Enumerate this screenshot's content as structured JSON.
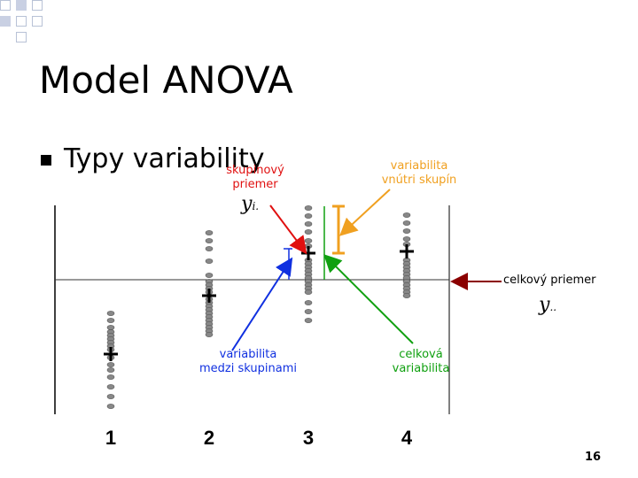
{
  "slide": {
    "title": "Model ANOVA",
    "bullet": "Typy variability",
    "page_number": "16"
  },
  "labels": {
    "group_mean": "skupinový\npriemer",
    "within": "variabilita\nvnútri skupín",
    "overall_mean": "celkový priemer",
    "between": "variabilita\nmedzi skupinami",
    "total": "celková\nvariabilita"
  },
  "symbols": {
    "group_mean": "y",
    "group_mean_sub": "i.",
    "overall_mean": "y",
    "overall_mean_sub": ".."
  },
  "colors": {
    "within": "#f0a020",
    "group_mean_arrow": "#e01010",
    "overall_mean_arrow": "#8b0000",
    "between": "#1030e0",
    "total": "#10a010",
    "points": "#888888"
  },
  "chart_data": {
    "type": "scatter",
    "categories": [
      "1",
      "2",
      "3",
      "4"
    ],
    "group_means": [
      1.9,
      3.8,
      4.6,
      5.3
    ],
    "overall_mean": 4.2
  }
}
